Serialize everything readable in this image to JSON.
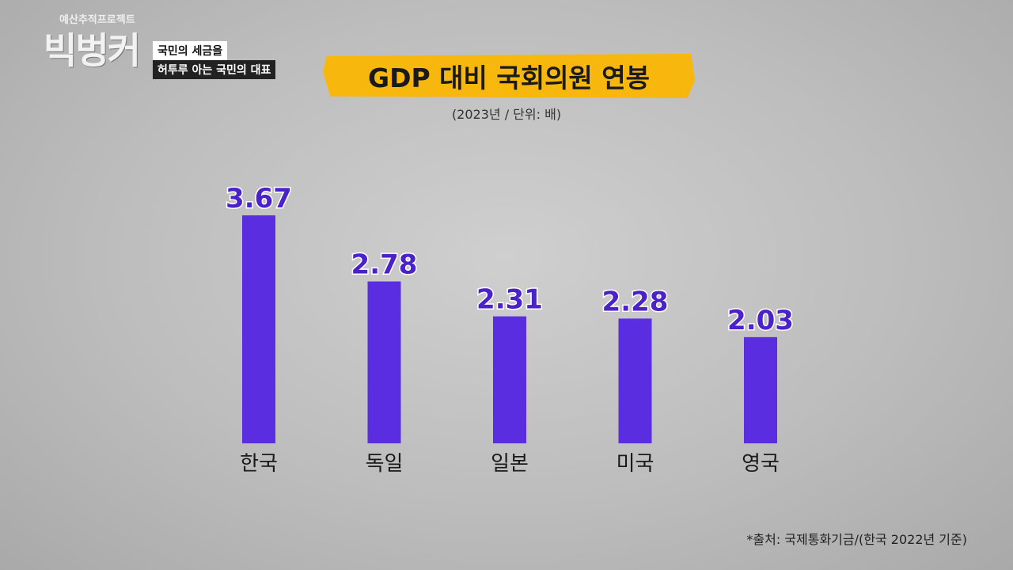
{
  "branding": {
    "program_subtitle": "예산추적프로젝트",
    "program_logo": "빅벙커",
    "tag_line1": "국민의 세금을",
    "tag_line2": "허투루 아는 국민의 대표"
  },
  "colors": {
    "bar": "#5a2ee0",
    "title_bg": "#f7b70c",
    "value_label": "#4b22c9"
  },
  "chart_data": {
    "type": "bar",
    "title": "GDP 대비 국회의원 연봉",
    "subtitle": "(2023년 / 단위: 배)",
    "categories": [
      "한국",
      "독일",
      "일본",
      "미국",
      "영국"
    ],
    "values": [
      3.67,
      2.78,
      2.31,
      2.28,
      2.03
    ],
    "value_labels": [
      "3.67",
      "2.78",
      "2.31",
      "2.28",
      "2.03"
    ],
    "grid": false,
    "legend": "none",
    "source": "*출처: 국제통화기금/(한국 2022년 기준)"
  }
}
